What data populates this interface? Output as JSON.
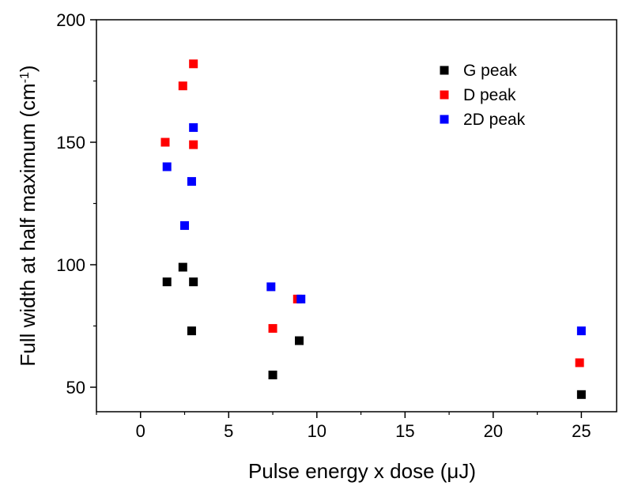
{
  "chart_data": {
    "type": "scatter",
    "xlabel": "Pulse energy x dose (μJ)",
    "ylabel_main": "Full width at half maximum (cm",
    "ylabel_sup": "-1",
    "ylabel_close": ")",
    "xlim": [
      -2.5,
      27
    ],
    "ylim": [
      40,
      200
    ],
    "xticks": [
      0,
      5,
      10,
      15,
      20,
      25
    ],
    "yticks": [
      50,
      100,
      150,
      200
    ],
    "legend_position": "top-right",
    "series": [
      {
        "name": "G peak",
        "color": "#000000",
        "points": [
          [
            1.5,
            93
          ],
          [
            2.4,
            99
          ],
          [
            2.9,
            73
          ],
          [
            3.0,
            93
          ],
          [
            7.5,
            55
          ],
          [
            9.0,
            69
          ],
          [
            25.0,
            47
          ]
        ]
      },
      {
        "name": "D peak",
        "color": "#ff0000",
        "points": [
          [
            1.4,
            150
          ],
          [
            2.4,
            173
          ],
          [
            3.0,
            182
          ],
          [
            3.0,
            149
          ],
          [
            7.5,
            74
          ],
          [
            8.9,
            86
          ],
          [
            24.9,
            60
          ]
        ]
      },
      {
        "name": "2D peak",
        "color": "#0000ff",
        "points": [
          [
            1.5,
            140
          ],
          [
            2.5,
            116
          ],
          [
            2.9,
            134
          ],
          [
            3.0,
            156
          ],
          [
            7.4,
            91
          ],
          [
            9.1,
            86
          ],
          [
            25.0,
            73
          ]
        ]
      }
    ]
  }
}
